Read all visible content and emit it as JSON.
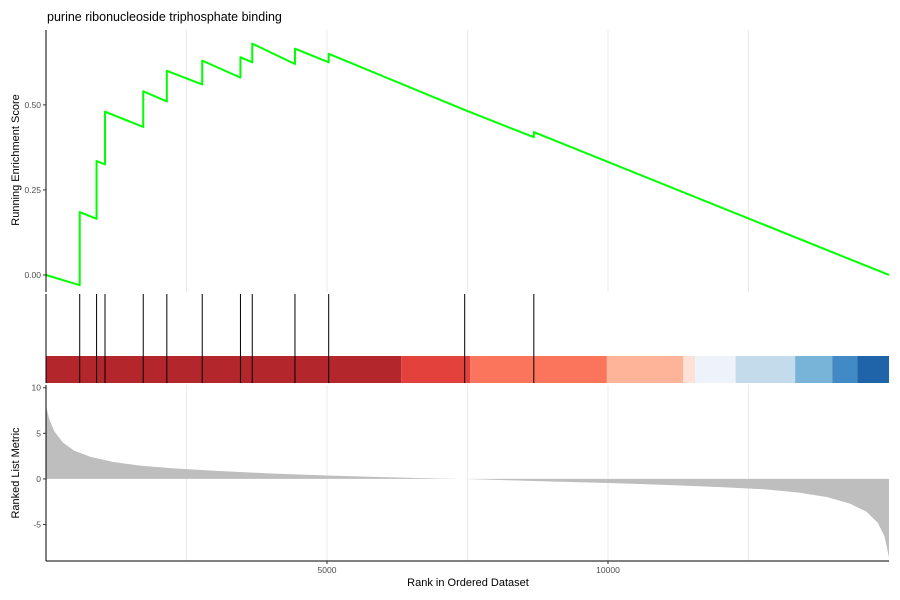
{
  "chart_data": {
    "type": "line",
    "title": "purine ribonucleoside triphosphate binding",
    "xlabel": "Rank in Ordered Dataset",
    "x_ticks": [
      5000,
      10000
    ],
    "x_range": [
      0,
      15000
    ],
    "grid": "vertical only",
    "panels": [
      {
        "name": "running-enrichment",
        "ylabel": "Running Enrichment Score",
        "y_ticks": [
          "0.00",
          "0.25",
          "0.50"
        ],
        "ylim": [
          -0.05,
          0.72
        ],
        "line_color": "#00ff00",
        "hit_ranks": [
          600,
          900,
          1050,
          1730,
          2150,
          2780,
          3460,
          3670,
          4430,
          5030,
          7450,
          8680
        ],
        "series_points": [
          [
            0,
            0.0
          ],
          [
            600,
            -0.03
          ],
          [
            600,
            0.185
          ],
          [
            900,
            0.165
          ],
          [
            900,
            0.335
          ],
          [
            1050,
            0.325
          ],
          [
            1050,
            0.48
          ],
          [
            1730,
            0.435
          ],
          [
            1730,
            0.54
          ],
          [
            2150,
            0.51
          ],
          [
            2150,
            0.6
          ],
          [
            2780,
            0.56
          ],
          [
            2780,
            0.63
          ],
          [
            3460,
            0.58
          ],
          [
            3460,
            0.64
          ],
          [
            3670,
            0.625
          ],
          [
            3670,
            0.68
          ],
          [
            4430,
            0.62
          ],
          [
            4430,
            0.665
          ],
          [
            5030,
            0.625
          ],
          [
            5030,
            0.65
          ],
          [
            7450,
            0.485
          ],
          [
            8680,
            0.405
          ],
          [
            8680,
            0.42
          ],
          [
            15000,
            0.0
          ]
        ]
      },
      {
        "name": "hit-ticks",
        "type": "rug",
        "heat_bands": [
          {
            "from": 0,
            "to": 6320,
            "color": "#b2262c"
          },
          {
            "from": 6320,
            "to": 7550,
            "color": "#e2423b"
          },
          {
            "from": 7550,
            "to": 9980,
            "color": "#fb755d"
          },
          {
            "from": 9980,
            "to": 11340,
            "color": "#fdb499"
          },
          {
            "from": 11340,
            "to": 11550,
            "color": "#fde1d6"
          },
          {
            "from": 11550,
            "to": 12270,
            "color": "#eef3fb"
          },
          {
            "from": 12270,
            "to": 13330,
            "color": "#c3dbea"
          },
          {
            "from": 13330,
            "to": 13990,
            "color": "#78b3d8"
          },
          {
            "from": 13990,
            "to": 14440,
            "color": "#428ac5"
          },
          {
            "from": 14440,
            "to": 15000,
            "color": "#1f64a9"
          }
        ]
      },
      {
        "name": "ranked-list-metric",
        "type": "area",
        "ylabel": "Ranked List Metric",
        "y_ticks": [
          "10",
          "5",
          "0",
          "-5"
        ],
        "ylim": [
          -9,
          10.3
        ],
        "fill": "#bebebe",
        "metric_curve": [
          [
            0,
            8.0
          ],
          [
            60,
            6.5
          ],
          [
            150,
            5.2
          ],
          [
            300,
            4.0
          ],
          [
            500,
            3.1
          ],
          [
            800,
            2.4
          ],
          [
            1200,
            1.85
          ],
          [
            1700,
            1.45
          ],
          [
            2300,
            1.15
          ],
          [
            3000,
            0.9
          ],
          [
            4000,
            0.6
          ],
          [
            5000,
            0.38
          ],
          [
            6000,
            0.2
          ],
          [
            7000,
            0.05
          ],
          [
            7400,
            0.0
          ],
          [
            8000,
            -0.1
          ],
          [
            9000,
            -0.28
          ],
          [
            10000,
            -0.45
          ],
          [
            11000,
            -0.65
          ],
          [
            12000,
            -0.9
          ],
          [
            12800,
            -1.15
          ],
          [
            13400,
            -1.5
          ],
          [
            13900,
            -2.0
          ],
          [
            14300,
            -2.7
          ],
          [
            14600,
            -3.6
          ],
          [
            14800,
            -4.8
          ],
          [
            14920,
            -6.3
          ],
          [
            15000,
            -8.6
          ]
        ]
      }
    ]
  }
}
